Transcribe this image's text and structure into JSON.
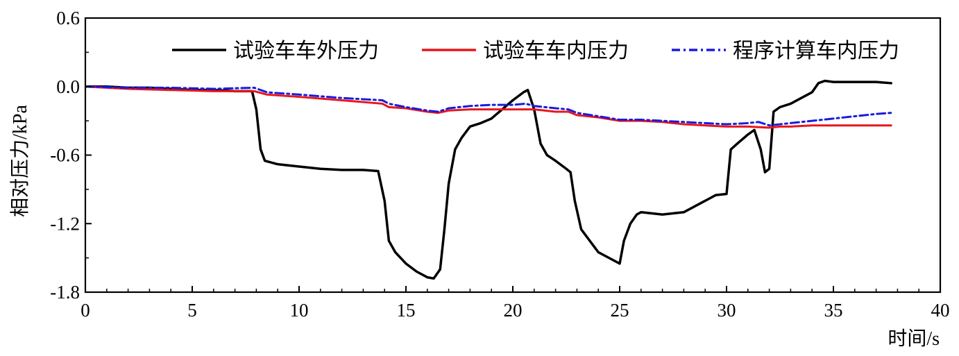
{
  "chart_data": {
    "type": "line",
    "xlabel": "时间/s",
    "ylabel": "相对压力/kPa",
    "xlim": [
      0,
      40
    ],
    "ylim": [
      -1.8,
      0.6
    ],
    "xticks": [
      0,
      5,
      10,
      15,
      20,
      25,
      30,
      35,
      40
    ],
    "yticks": [
      0.6,
      0.0,
      -0.6,
      -1.2,
      -1.8
    ],
    "ytick_labels": [
      "0.6",
      "0.0",
      "-0.6",
      "-1.2",
      "-1.8"
    ],
    "grid": false,
    "legend_position": "top-right",
    "series": [
      {
        "name": "试验车车外压力",
        "color": "#000000",
        "style": "solid",
        "x": [
          0,
          1,
          2,
          3,
          4,
          5,
          6,
          7,
          7.8,
          8.0,
          8.2,
          8.4,
          9,
          10,
          11,
          12,
          13,
          13.7,
          14.0,
          14.2,
          14.5,
          15,
          15.5,
          16,
          16.3,
          16.6,
          16.8,
          17.0,
          17.3,
          17.6,
          18,
          18.5,
          19,
          19.5,
          20,
          20.5,
          20.7,
          21.0,
          21.3,
          21.6,
          22,
          22.5,
          22.7,
          22.9,
          23.2,
          23.6,
          24,
          24.5,
          25,
          25.2,
          25.5,
          25.8,
          26,
          27,
          28,
          29,
          29.5,
          30.0,
          30.2,
          30.5,
          31,
          31.3,
          31.6,
          31.8,
          32.0,
          32.2,
          32.5,
          33,
          33.5,
          34,
          34.3,
          34.6,
          35,
          36,
          37,
          37.7
        ],
        "y": [
          0.0,
          0.0,
          -0.01,
          -0.01,
          -0.02,
          -0.03,
          -0.03,
          -0.04,
          -0.04,
          -0.2,
          -0.55,
          -0.65,
          -0.68,
          -0.7,
          -0.72,
          -0.73,
          -0.73,
          -0.74,
          -1.0,
          -1.35,
          -1.45,
          -1.55,
          -1.62,
          -1.67,
          -1.68,
          -1.6,
          -1.25,
          -0.85,
          -0.55,
          -0.45,
          -0.35,
          -0.32,
          -0.28,
          -0.2,
          -0.12,
          -0.05,
          -0.03,
          -0.2,
          -0.5,
          -0.6,
          -0.65,
          -0.72,
          -0.75,
          -1.0,
          -1.25,
          -1.35,
          -1.45,
          -1.5,
          -1.55,
          -1.35,
          -1.2,
          -1.12,
          -1.1,
          -1.12,
          -1.1,
          -1.0,
          -0.95,
          -0.94,
          -0.55,
          -0.5,
          -0.42,
          -0.38,
          -0.55,
          -0.75,
          -0.72,
          -0.22,
          -0.18,
          -0.15,
          -0.1,
          -0.05,
          0.03,
          0.05,
          0.04,
          0.04,
          0.04,
          0.03
        ]
      },
      {
        "name": "试验车车内压力",
        "color": "#e8161b",
        "style": "solid",
        "x": [
          0,
          2,
          4,
          6,
          7.9,
          8.5,
          10,
          12,
          13.9,
          14.2,
          15,
          16,
          16.5,
          17,
          18,
          19,
          20,
          21,
          22,
          22.6,
          23,
          24,
          25,
          26,
          27,
          28,
          29,
          30,
          31,
          32,
          32.5,
          33,
          34,
          35,
          36,
          37,
          37.7
        ],
        "y": [
          0.0,
          -0.02,
          -0.03,
          -0.04,
          -0.04,
          -0.07,
          -0.09,
          -0.12,
          -0.15,
          -0.18,
          -0.19,
          -0.22,
          -0.23,
          -0.21,
          -0.2,
          -0.2,
          -0.2,
          -0.2,
          -0.22,
          -0.22,
          -0.25,
          -0.27,
          -0.3,
          -0.3,
          -0.31,
          -0.33,
          -0.34,
          -0.35,
          -0.35,
          -0.36,
          -0.35,
          -0.35,
          -0.34,
          -0.34,
          -0.34,
          -0.34,
          -0.34
        ]
      },
      {
        "name": "程序计算车内压力",
        "color": "#1a1ae0",
        "style": "dashdot",
        "x": [
          0,
          2,
          4,
          6,
          7.9,
          8.5,
          10,
          12,
          13.9,
          14.2,
          15,
          16,
          16.5,
          17,
          18,
          19,
          20,
          20.6,
          21,
          22,
          22.6,
          23,
          24,
          25,
          26,
          27,
          28,
          29,
          30,
          31,
          31.5,
          32,
          32.5,
          33,
          34,
          35,
          36,
          37,
          37.7
        ],
        "y": [
          0.0,
          -0.01,
          -0.01,
          -0.02,
          -0.01,
          -0.05,
          -0.07,
          -0.1,
          -0.12,
          -0.15,
          -0.18,
          -0.21,
          -0.22,
          -0.19,
          -0.17,
          -0.16,
          -0.16,
          -0.15,
          -0.17,
          -0.19,
          -0.2,
          -0.23,
          -0.26,
          -0.29,
          -0.29,
          -0.3,
          -0.31,
          -0.32,
          -0.33,
          -0.32,
          -0.31,
          -0.34,
          -0.33,
          -0.32,
          -0.3,
          -0.28,
          -0.26,
          -0.24,
          -0.23
        ]
      }
    ]
  }
}
